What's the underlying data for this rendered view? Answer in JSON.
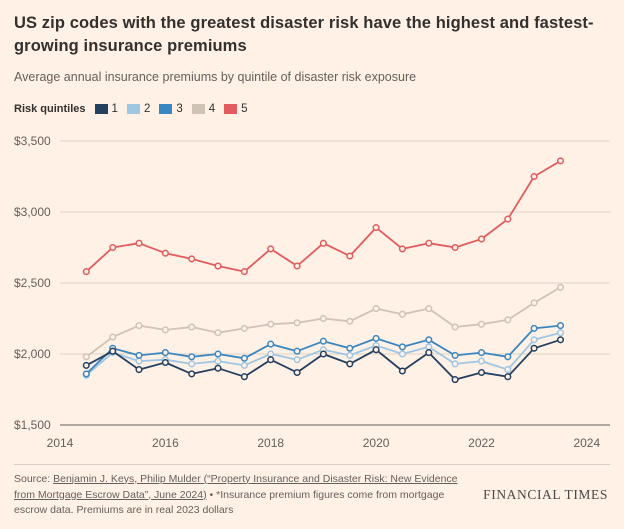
{
  "header": {
    "title": "US zip codes with the greatest disaster risk have the highest and fastest-growing insurance premiums",
    "subtitle": "Average annual insurance premiums by quintile of disaster risk exposure"
  },
  "chart_data": {
    "type": "line",
    "title": "Average annual insurance premiums by quintile of disaster risk exposure",
    "legend_label": "Risk quintiles",
    "grid": "horizontal",
    "legend_position": "top",
    "marker": "open-circle",
    "xlim": [
      2014,
      2024.25
    ],
    "ylim": [
      1500,
      3500
    ],
    "x_ticks": [
      2014,
      2016,
      2018,
      2020,
      2022,
      2024
    ],
    "y_ticks": [
      1500,
      2000,
      2500,
      3000,
      3500
    ],
    "y_tick_labels": [
      "$1,500",
      "$2,000",
      "$2,500",
      "$3,000",
      "$3,500"
    ],
    "x": [
      2014.5,
      2015,
      2015.5,
      2016,
      2016.5,
      2017,
      2017.5,
      2018,
      2018.5,
      2019,
      2019.5,
      2020,
      2020.5,
      2021,
      2021.5,
      2022,
      2022.5,
      2023,
      2023.5
    ],
    "series": [
      {
        "name": "1",
        "color": "#243f60",
        "values": [
          1920,
          2020,
          1890,
          1940,
          1860,
          1900,
          1840,
          1960,
          1870,
          2000,
          1930,
          2030,
          1880,
          2010,
          1820,
          1870,
          1840,
          2040,
          2100
        ]
      },
      {
        "name": "2",
        "color": "#9fc6e3",
        "values": [
          1850,
          2010,
          1950,
          1960,
          1930,
          1950,
          1920,
          2000,
          1960,
          2030,
          1990,
          2060,
          2000,
          2050,
          1930,
          1950,
          1890,
          2100,
          2150
        ]
      },
      {
        "name": "3",
        "color": "#3a86c0",
        "values": [
          1860,
          2040,
          1990,
          2010,
          1980,
          2000,
          1970,
          2070,
          2020,
          2090,
          2040,
          2110,
          2050,
          2100,
          1990,
          2010,
          1980,
          2180,
          2200
        ]
      },
      {
        "name": "4",
        "color": "#cfc3b6",
        "values": [
          1980,
          2120,
          2200,
          2170,
          2190,
          2150,
          2180,
          2210,
          2220,
          2250,
          2230,
          2320,
          2280,
          2320,
          2190,
          2210,
          2240,
          2360,
          2470
        ]
      },
      {
        "name": "5",
        "color": "#e25b5e",
        "values": [
          2580,
          2750,
          2780,
          2710,
          2670,
          2620,
          2580,
          2740,
          2620,
          2780,
          2690,
          2890,
          2740,
          2780,
          2750,
          2810,
          2950,
          3250,
          3360
        ]
      }
    ],
    "colors": {
      "grid": "#ddd2c4",
      "axis": "#66605c",
      "tick_text": "#66605c",
      "marker_fill": "#fff1e5"
    }
  },
  "footer": {
    "source_prefix": "Source: ",
    "source_link": "Benjamin J. Keys, Philip Mulder (“Property Insurance and Disaster Risk: New Evidence from Mortgage Escrow Data”, June 2024)",
    "source_suffix": " • *Insurance premium figures come from mortgage escrow data. Premiums are in real 2023 dollars",
    "brand": "FINANCIAL TIMES"
  }
}
